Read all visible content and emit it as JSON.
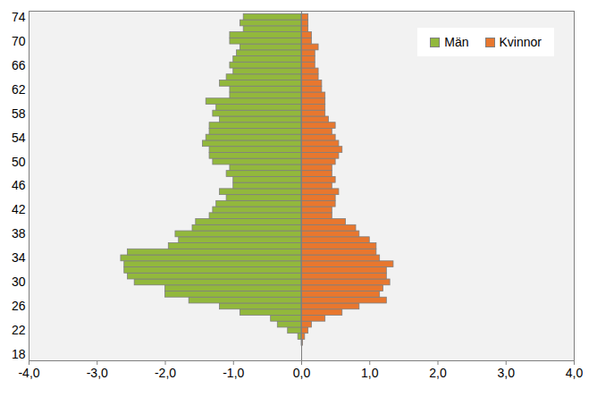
{
  "chart_data": {
    "type": "bar",
    "orientation": "horizontal",
    "stacked": false,
    "grid": false,
    "legend": "top-right",
    "categories": [
      18,
      19,
      20,
      21,
      22,
      23,
      24,
      25,
      26,
      27,
      28,
      29,
      30,
      31,
      32,
      33,
      34,
      35,
      36,
      37,
      38,
      39,
      40,
      41,
      42,
      43,
      44,
      45,
      46,
      47,
      48,
      49,
      50,
      51,
      52,
      53,
      54,
      55,
      56,
      57,
      58,
      59,
      60,
      61,
      62,
      63,
      64,
      65,
      66,
      67,
      68,
      69,
      70,
      71,
      72,
      73,
      74
    ],
    "series": [
      {
        "name": "Män",
        "color": "#92b83c",
        "values": [
          0,
          0,
          0,
          -0.05,
          -0.2,
          -0.35,
          -0.45,
          -0.9,
          -1.2,
          -1.65,
          -2.0,
          -2.0,
          -2.45,
          -2.55,
          -2.6,
          -2.6,
          -2.65,
          -2.55,
          -1.95,
          -1.8,
          -1.85,
          -1.6,
          -1.55,
          -1.35,
          -1.3,
          -1.25,
          -1.1,
          -1.2,
          -1.0,
          -1.0,
          -1.1,
          -1.05,
          -1.3,
          -1.35,
          -1.35,
          -1.45,
          -1.4,
          -1.35,
          -1.35,
          -1.2,
          -1.3,
          -1.25,
          -1.4,
          -1.05,
          -1.05,
          -1.2,
          -1.1,
          -1.0,
          -1.05,
          -1.0,
          -0.95,
          -0.9,
          -1.05,
          -1.05,
          -0.85,
          -0.9,
          -0.85
        ]
      },
      {
        "name": "Kvinnor",
        "color": "#e8772e",
        "values": [
          0,
          0,
          0.02,
          0.05,
          0.1,
          0.15,
          0.35,
          0.6,
          0.85,
          1.25,
          1.15,
          1.2,
          1.3,
          1.25,
          1.25,
          1.35,
          1.15,
          1.1,
          1.1,
          1.0,
          0.85,
          0.8,
          0.65,
          0.45,
          0.45,
          0.5,
          0.5,
          0.55,
          0.45,
          0.5,
          0.45,
          0.45,
          0.5,
          0.55,
          0.6,
          0.55,
          0.5,
          0.45,
          0.5,
          0.4,
          0.35,
          0.35,
          0.35,
          0.35,
          0.3,
          0.3,
          0.25,
          0.25,
          0.2,
          0.2,
          0.2,
          0.25,
          0.15,
          0.15,
          0.1,
          0.1,
          0.1
        ]
      }
    ],
    "xlim": [
      -4,
      4
    ],
    "xticks": [
      {
        "value": -4,
        "label": "-4,0"
      },
      {
        "value": -3,
        "label": "-3,0"
      },
      {
        "value": -2,
        "label": "-2,0"
      },
      {
        "value": -1,
        "label": "-1,0"
      },
      {
        "value": 0,
        "label": "0,0"
      },
      {
        "value": 1,
        "label": "1,0"
      },
      {
        "value": 2,
        "label": "2,0"
      },
      {
        "value": 3,
        "label": "3,0"
      },
      {
        "value": 4,
        "label": "4,0"
      }
    ],
    "ylim": [
      17,
      75
    ],
    "yticks": [
      18,
      22,
      26,
      30,
      34,
      38,
      42,
      46,
      50,
      54,
      58,
      62,
      66,
      70,
      74
    ]
  }
}
